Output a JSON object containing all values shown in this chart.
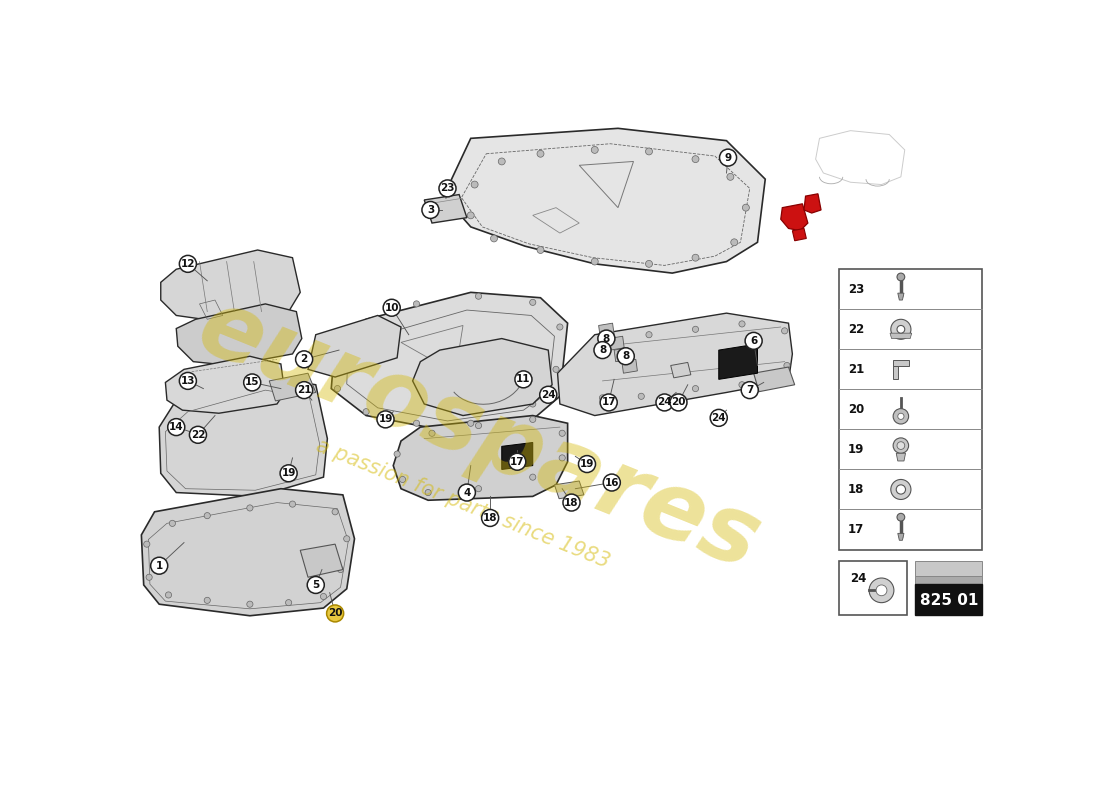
{
  "bg_color": "#FFFFFF",
  "watermark1": "eurospares",
  "watermark2": "a passion for parts since 1983",
  "wm_color": "#D4B800",
  "wm_alpha": 0.4,
  "part_number": "825 01",
  "line_color": "#2a2a2a",
  "fill_light": "#e2e2e2",
  "fill_med": "#cccccc",
  "fill_dark": "#b8b8b8",
  "red_color": "#CC1111",
  "circle_fill": "#FFFFFF",
  "circle_edge": "#222222",
  "gold_fill": "#E8C840",
  "part_lw": 1.0
}
